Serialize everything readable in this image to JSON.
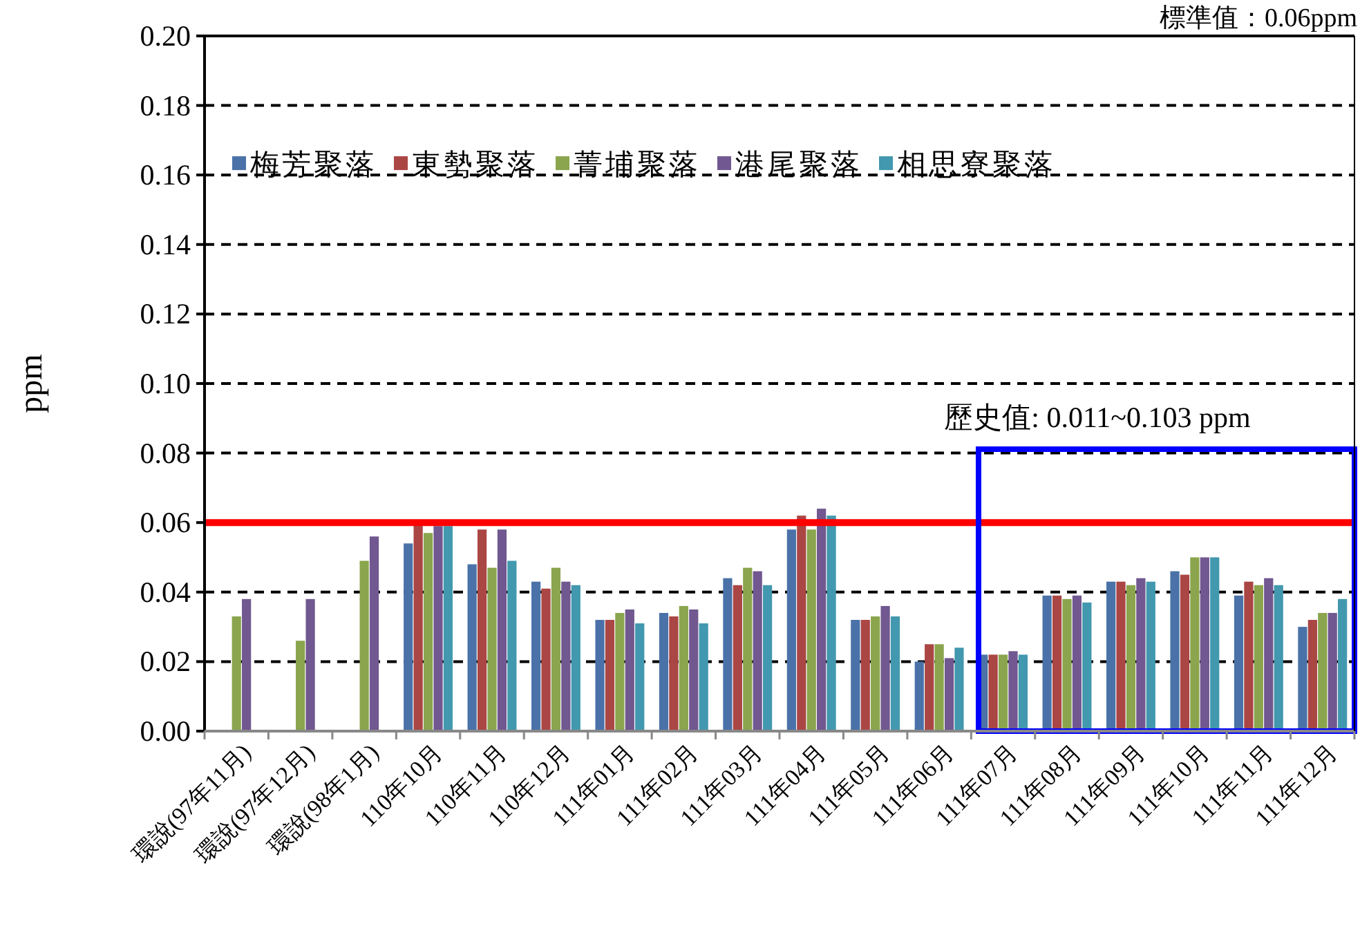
{
  "chart_data": {
    "type": "bar",
    "ylabel": "ppm",
    "categories": [
      "環說(97年11月)",
      "環說(97年12月)",
      "環說(98年1月)",
      "110年10月",
      "110年11月",
      "110年12月",
      "111年01月",
      "111年02月",
      "111年03月",
      "111年04月",
      "111年05月",
      "111年06月",
      "111年07月",
      "111年08月",
      "111年09月",
      "111年10月",
      "111年11月",
      "111年12月"
    ],
    "series": [
      {
        "name": "梅芳聚落",
        "color": "#4a72a8",
        "values": [
          null,
          null,
          null,
          0.054,
          0.048,
          0.043,
          0.032,
          0.034,
          0.044,
          0.058,
          0.032,
          0.02,
          0.022,
          0.039,
          0.043,
          0.046,
          0.039,
          0.03
        ]
      },
      {
        "name": "東勢聚落",
        "color": "#aa4644",
        "values": [
          null,
          null,
          null,
          0.06,
          0.058,
          0.041,
          0.032,
          0.033,
          0.042,
          0.062,
          0.032,
          0.025,
          0.022,
          0.039,
          0.043,
          0.045,
          0.043,
          0.032
        ]
      },
      {
        "name": "菁埔聚落",
        "color": "#8aa54d",
        "values": [
          0.033,
          0.026,
          0.049,
          0.057,
          0.047,
          0.047,
          0.034,
          0.036,
          0.047,
          0.058,
          0.033,
          0.025,
          0.022,
          0.038,
          0.042,
          0.05,
          0.042,
          0.034
        ]
      },
      {
        "name": "港尾聚落",
        "color": "#715890",
        "values": [
          0.038,
          0.038,
          0.056,
          0.059,
          0.058,
          0.043,
          0.035,
          0.035,
          0.046,
          0.064,
          0.036,
          0.021,
          0.023,
          0.039,
          0.044,
          0.05,
          0.044,
          0.034
        ]
      },
      {
        "name": "相思寮聚落",
        "color": "#4298ae",
        "values": [
          null,
          null,
          null,
          0.059,
          0.049,
          0.042,
          0.031,
          0.031,
          0.042,
          0.062,
          0.033,
          0.024,
          0.022,
          0.037,
          0.043,
          0.05,
          0.042,
          0.038
        ]
      }
    ],
    "ylim": [
      0,
      0.2
    ],
    "yticks": [
      {
        "value": 0,
        "label": "0.00"
      },
      {
        "value": 0.02,
        "label": "0.02"
      },
      {
        "value": 0.04,
        "label": "0.04"
      },
      {
        "value": 0.06,
        "label": "0.06"
      },
      {
        "value": 0.08,
        "label": "0.08"
      },
      {
        "value": 0.1,
        "label": "0.10"
      },
      {
        "value": 0.12,
        "label": "0.12"
      },
      {
        "value": 0.14,
        "label": "0.14"
      },
      {
        "value": 0.16,
        "label": "0.16"
      },
      {
        "value": 0.18,
        "label": "0.18"
      },
      {
        "value": 0.2,
        "label": "0.20"
      }
    ],
    "grid": "y",
    "legend": "top",
    "ref_lines": [
      {
        "axis": "y",
        "value": 0.06,
        "color": "#ff0000"
      }
    ],
    "annotations": [
      "標準值：0.06ppm",
      "歷史值: 0.011~0.103 ppm"
    ]
  }
}
